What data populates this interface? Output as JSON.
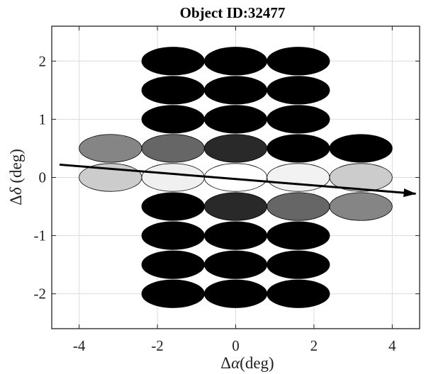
{
  "chart_data": {
    "type": "scatter",
    "title": "Object ID:32477",
    "xlabel": "Δα(deg)",
    "ylabel": "Δδ (deg)",
    "xlim": [
      -4.7,
      4.7
    ],
    "ylim": [
      -2.6,
      2.6
    ],
    "xticks": [
      -4,
      -2,
      0,
      2,
      4
    ],
    "yticks": [
      -2,
      -1,
      0,
      1,
      2
    ],
    "grid": true,
    "ellipse_semi_axes_deg": {
      "rx": 0.8,
      "ry": 0.24
    },
    "beams": [
      {
        "x": -1.6,
        "y": 2.0,
        "gray": 0.0
      },
      {
        "x": 0.0,
        "y": 2.0,
        "gray": 0.0
      },
      {
        "x": 1.6,
        "y": 2.0,
        "gray": 0.0
      },
      {
        "x": -1.6,
        "y": 1.5,
        "gray": 0.0
      },
      {
        "x": 0.0,
        "y": 1.5,
        "gray": 0.0
      },
      {
        "x": 1.6,
        "y": 1.5,
        "gray": 0.0
      },
      {
        "x": -1.6,
        "y": 1.0,
        "gray": 0.0
      },
      {
        "x": 0.0,
        "y": 1.0,
        "gray": 0.0
      },
      {
        "x": 1.6,
        "y": 1.0,
        "gray": 0.0
      },
      {
        "x": -3.2,
        "y": 0.5,
        "gray": 0.52
      },
      {
        "x": -1.6,
        "y": 0.5,
        "gray": 0.4
      },
      {
        "x": 0.0,
        "y": 0.5,
        "gray": 0.16
      },
      {
        "x": 1.6,
        "y": 0.5,
        "gray": 0.0
      },
      {
        "x": 3.2,
        "y": 0.5,
        "gray": 0.0
      },
      {
        "x": -3.2,
        "y": 0.0,
        "gray": 0.8
      },
      {
        "x": -1.6,
        "y": 0.0,
        "gray": 0.94
      },
      {
        "x": 0.0,
        "y": 0.0,
        "gray": 1.0
      },
      {
        "x": 1.6,
        "y": 0.0,
        "gray": 0.95
      },
      {
        "x": 3.2,
        "y": 0.0,
        "gray": 0.8
      },
      {
        "x": -1.6,
        "y": -0.5,
        "gray": 0.0
      },
      {
        "x": 0.0,
        "y": -0.5,
        "gray": 0.16
      },
      {
        "x": 1.6,
        "y": -0.5,
        "gray": 0.4
      },
      {
        "x": 3.2,
        "y": -0.5,
        "gray": 0.52
      },
      {
        "x": -1.6,
        "y": -1.0,
        "gray": 0.0
      },
      {
        "x": 0.0,
        "y": -1.0,
        "gray": 0.0
      },
      {
        "x": 1.6,
        "y": -1.0,
        "gray": 0.0
      },
      {
        "x": -1.6,
        "y": -1.5,
        "gray": 0.0
      },
      {
        "x": 0.0,
        "y": -1.5,
        "gray": 0.0
      },
      {
        "x": 1.6,
        "y": -1.5,
        "gray": 0.0
      },
      {
        "x": -1.6,
        "y": -2.0,
        "gray": 0.0
      },
      {
        "x": 0.0,
        "y": -2.0,
        "gray": 0.0
      },
      {
        "x": 1.6,
        "y": -2.0,
        "gray": 0.0
      }
    ],
    "trajectory": {
      "x": [
        -4.5,
        4.6
      ],
      "y": [
        0.22,
        -0.28
      ],
      "arrow": true
    }
  }
}
